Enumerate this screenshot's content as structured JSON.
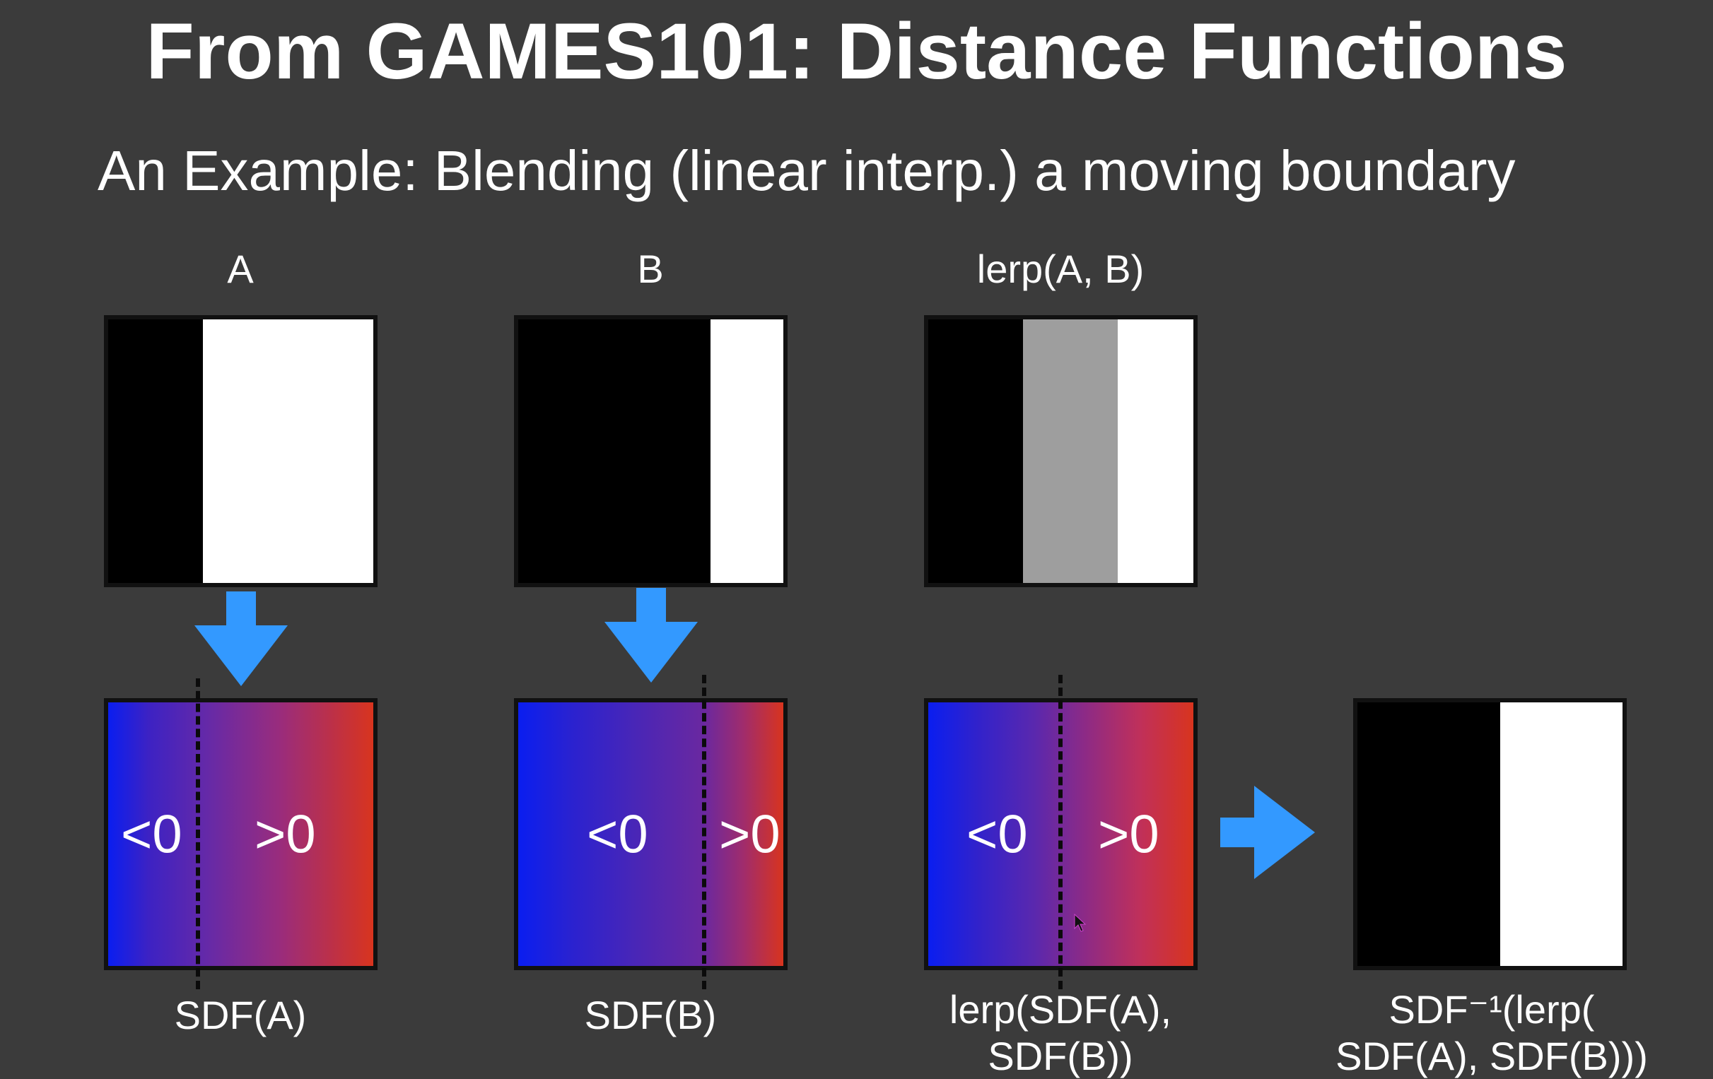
{
  "title": "From GAMES101: Distance Functions",
  "subtitle": "An Example: Blending (linear interp.) a moving boundary",
  "columns": {
    "a": {
      "top_label": "A",
      "bottom_label": "SDF(A)",
      "neg": "<0",
      "pos": ">0"
    },
    "b": {
      "top_label": "B",
      "bottom_label": "SDF(B)",
      "neg": "<0",
      "pos": ">0"
    },
    "lerp": {
      "top_label": "lerp(A, B)",
      "bottom_label_line1": "lerp(SDF(A),",
      "bottom_label_line2": "SDF(B))",
      "neg": "<0",
      "pos": ">0"
    },
    "result": {
      "bottom_label_line1": "SDF⁻¹(lerp(",
      "bottom_label_line2": "SDF(A), SDF(B)))"
    }
  },
  "colors": {
    "background": "#3b3b3b",
    "arrow": "#3399ff",
    "grad_blue": "#0a1ef0",
    "grad_purple": "#7a2a9a",
    "grad_red": "#e8341e",
    "gray_band": "#9e9e9e"
  },
  "icons": {
    "down_arrow": "arrow-down-icon",
    "right_arrow": "arrow-right-icon",
    "cursor": "cursor-icon"
  }
}
